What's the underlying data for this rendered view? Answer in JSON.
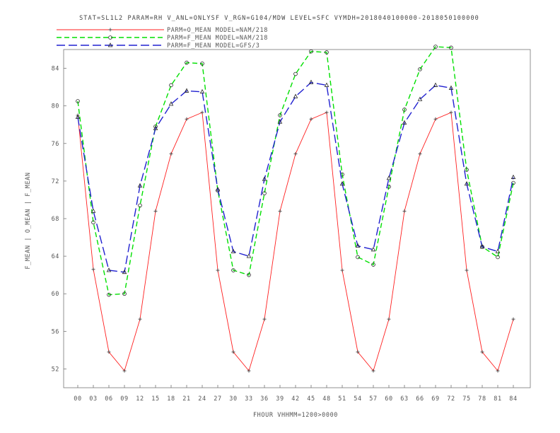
{
  "chart_data": {
    "type": "line",
    "title": "STAT=SL1L2 PARAM=RH V_ANL=ONLYSF V_RGN=G104/MDW LEVEL=SFC VYMDH=2018040100000-2018050100000",
    "xlabel": "FHOUR VHHMM=1200>0000",
    "ylabel": "F_MEAN | O_MEAN | F_MEAN",
    "categories": [
      "00",
      "03",
      "06",
      "09",
      "12",
      "15",
      "18",
      "21",
      "24",
      "27",
      "30",
      "33",
      "36",
      "39",
      "42",
      "45",
      "48",
      "51",
      "54",
      "57",
      "60",
      "63",
      "66",
      "69",
      "72",
      "75",
      "78",
      "81",
      "84"
    ],
    "ylim": [
      50,
      86
    ],
    "yticks": [
      52,
      56,
      60,
      64,
      68,
      72,
      76,
      80,
      84
    ],
    "grid": false,
    "legend_position": "top-left",
    "series": [
      {
        "name": "PARM=O_MEAN MODEL=NAM/218",
        "color": "#ff2020",
        "dash": "solid",
        "marker": "plus",
        "values": [
          79.0,
          62.6,
          53.8,
          51.8,
          57.3,
          68.8,
          74.9,
          78.6,
          79.3,
          62.5,
          53.8,
          51.8,
          57.3,
          68.8,
          74.9,
          78.6,
          79.3,
          62.5,
          53.8,
          51.8,
          57.3,
          68.8,
          74.9,
          78.6,
          79.3,
          62.5,
          53.8,
          51.8,
          57.3
        ]
      },
      {
        "name": "PARM=F_MEAN MODEL=NAM/218",
        "color": "#00e000",
        "dash": "long",
        "marker": "circle",
        "values": [
          80.5,
          67.6,
          59.9,
          60.0,
          69.4,
          77.8,
          82.2,
          84.6,
          84.5,
          71.0,
          62.5,
          62.0,
          70.7,
          79.0,
          83.4,
          85.8,
          85.7,
          72.7,
          63.9,
          63.1,
          71.4,
          79.6,
          83.9,
          86.3,
          86.2,
          73.2,
          65.0,
          63.9,
          71.8
        ]
      },
      {
        "name": "PARM=F_MEAN MODEL=GFS/3",
        "color": "#2020d0",
        "dash": "medium",
        "marker": "triangle",
        "values": [
          78.8,
          68.8,
          62.5,
          62.3,
          71.5,
          77.6,
          80.2,
          81.6,
          81.5,
          71.1,
          64.5,
          64.0,
          72.2,
          78.3,
          81.0,
          82.5,
          82.2,
          71.7,
          65.1,
          64.7,
          72.3,
          78.2,
          80.7,
          82.2,
          81.9,
          71.7,
          65.0,
          64.5,
          72.4
        ]
      }
    ]
  }
}
